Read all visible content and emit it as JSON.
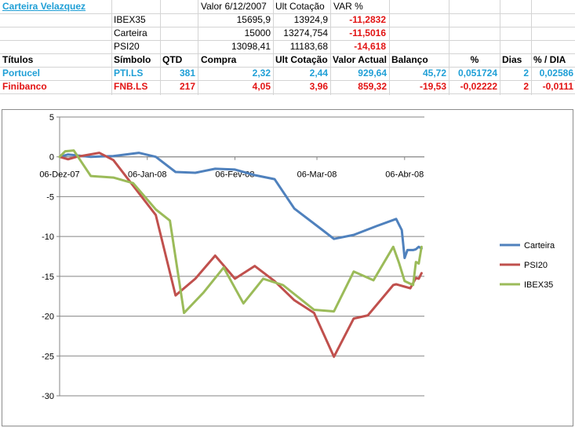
{
  "sheet": {
    "title": "Carteira Velazquez",
    "summary_header": {
      "valor": "Valor 6/12/2007",
      "ult": "Ult Cotação",
      "var": "VAR %"
    },
    "summary_rows": [
      {
        "name": "IBEX35",
        "valor": "15695,9",
        "ult": "13924,9",
        "var": "-11,2832"
      },
      {
        "name": "Carteira",
        "valor": "15000",
        "ult": "13274,754",
        "var": "-11,5016"
      },
      {
        "name": "PSI20",
        "valor": "13098,41",
        "ult": "11183,68",
        "var": "-14,618"
      }
    ],
    "table_header": {
      "titulos": "Títulos",
      "simbolo": "Símbolo",
      "qtd": "QTD",
      "compra": "Compra",
      "ult": "Ult Cotação",
      "valor": "Valor Actual",
      "balanco": "Balanço",
      "pct": "%",
      "dias": "Dias",
      "pct_dia": "% / DIA"
    },
    "rows": [
      {
        "titulo": "Portucel",
        "simbolo": "PTI.LS",
        "qtd": "381",
        "compra": "2,32",
        "ult": "2,44",
        "valor": "929,64",
        "balanco": "45,72",
        "pct": "0,051724",
        "dias": "2",
        "pct_dia": "0,02586"
      },
      {
        "titulo": "Finibanco",
        "simbolo": "FNB.LS",
        "qtd": "217",
        "compra": "4,05",
        "ult": "3,96",
        "valor": "859,32",
        "balanco": "-19,53",
        "pct": "-0,02222",
        "dias": "2",
        "pct_dia": "-0,0111"
      }
    ]
  },
  "colors": {
    "carteira": "#4f81bd",
    "psi20": "#c0504d",
    "ibex35": "#9bbb59",
    "link": "#1f9fd6",
    "negative": "#e21313"
  },
  "chart_data": {
    "type": "line",
    "xlim": [
      "2007-12-06",
      "2008-04-13"
    ],
    "ylim": [
      -30,
      5
    ],
    "ytick_step": 5,
    "y_ticks": [
      "5",
      "0",
      "-5",
      "-10",
      "-15",
      "-20",
      "-25",
      "-30"
    ],
    "x_tick_labels": [
      "06-Dez-07",
      "06-Jan-08",
      "06-Fev-08",
      "06-Mar-08",
      "06-Abr-08"
    ],
    "x_tick_dates": [
      "2007-12-06",
      "2008-01-06",
      "2008-02-06",
      "2008-03-06",
      "2008-04-06"
    ],
    "grid": "horizontal",
    "legend_position": "right",
    "series": [
      {
        "name": "Carteira",
        "color": "#4f81bd",
        "points": [
          [
            "2007-12-06",
            0
          ],
          [
            "2007-12-09",
            0.3
          ],
          [
            "2007-12-17",
            0
          ],
          [
            "2007-12-25",
            0.1
          ],
          [
            "2008-01-03",
            0.5
          ],
          [
            "2008-01-09",
            0
          ],
          [
            "2008-01-16",
            -1.9
          ],
          [
            "2008-01-23",
            -2
          ],
          [
            "2008-01-30",
            -1.5
          ],
          [
            "2008-02-06",
            -1.6
          ],
          [
            "2008-02-13",
            -2.3
          ],
          [
            "2008-02-20",
            -2.8
          ],
          [
            "2008-02-27",
            -6.5
          ],
          [
            "2008-03-08",
            -9.2
          ],
          [
            "2008-03-12",
            -10.3
          ],
          [
            "2008-03-19",
            -9.8
          ],
          [
            "2008-03-27",
            -8.7
          ],
          [
            "2008-04-03",
            -7.8
          ],
          [
            "2008-04-05",
            -9.2
          ],
          [
            "2008-04-06",
            -12.7
          ],
          [
            "2008-04-07",
            -11.7
          ],
          [
            "2008-04-09",
            -11.7
          ],
          [
            "2008-04-10",
            -11.6
          ],
          [
            "2008-04-11",
            -11.3
          ],
          [
            "2008-04-12",
            -11.5
          ]
        ]
      },
      {
        "name": "PSI20",
        "color": "#c0504d",
        "points": [
          [
            "2007-12-06",
            0
          ],
          [
            "2007-12-09",
            -0.3
          ],
          [
            "2007-12-12",
            0
          ],
          [
            "2007-12-20",
            0.5
          ],
          [
            "2007-12-25",
            -0.4
          ],
          [
            "2008-01-09",
            -7.3
          ],
          [
            "2008-01-16",
            -17.4
          ],
          [
            "2008-01-23",
            -15.3
          ],
          [
            "2008-01-30",
            -12.4
          ],
          [
            "2008-02-06",
            -15.3
          ],
          [
            "2008-02-13",
            -13.7
          ],
          [
            "2008-02-20",
            -15.6
          ],
          [
            "2008-02-27",
            -18
          ],
          [
            "2008-03-05",
            -19.6
          ],
          [
            "2008-03-12",
            -25.1
          ],
          [
            "2008-03-19",
            -20.3
          ],
          [
            "2008-03-24",
            -19.9
          ],
          [
            "2008-04-02",
            -16.1
          ],
          [
            "2008-04-03",
            -16
          ],
          [
            "2008-04-06",
            -16.3
          ],
          [
            "2008-04-08",
            -16.5
          ],
          [
            "2008-04-10",
            -15.2
          ],
          [
            "2008-04-11",
            -15.3
          ],
          [
            "2008-04-12",
            -14.6
          ]
        ]
      },
      {
        "name": "IBEX35",
        "color": "#9bbb59",
        "points": [
          [
            "2007-12-06",
            0
          ],
          [
            "2007-12-08",
            0.7
          ],
          [
            "2007-12-11",
            0.8
          ],
          [
            "2007-12-17",
            -2.4
          ],
          [
            "2007-12-25",
            -2.6
          ],
          [
            "2008-01-01",
            -3.3
          ],
          [
            "2008-01-09",
            -6.6
          ],
          [
            "2008-01-14",
            -8
          ],
          [
            "2008-01-19",
            -19.6
          ],
          [
            "2008-01-26",
            -17
          ],
          [
            "2008-02-02",
            -13.9
          ],
          [
            "2008-02-09",
            -18.4
          ],
          [
            "2008-02-16",
            -15.3
          ],
          [
            "2008-02-23",
            -16.1
          ],
          [
            "2008-03-05",
            -19.2
          ],
          [
            "2008-03-12",
            -19.4
          ],
          [
            "2008-03-19",
            -14.4
          ],
          [
            "2008-03-26",
            -15.5
          ],
          [
            "2008-04-02",
            -11.3
          ],
          [
            "2008-04-04",
            -13.3
          ],
          [
            "2008-04-06",
            -15.6
          ],
          [
            "2008-04-09",
            -16.1
          ],
          [
            "2008-04-10",
            -13.2
          ],
          [
            "2008-04-11",
            -13.4
          ],
          [
            "2008-04-12",
            -11.3
          ]
        ]
      }
    ]
  }
}
